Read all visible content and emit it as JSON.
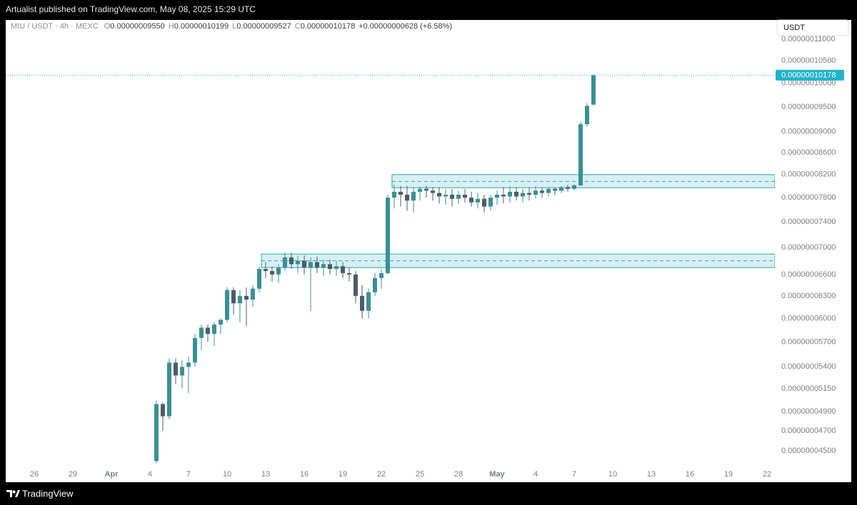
{
  "header": {
    "text": "Artualist published on TradingView.com, May 08, 2025 15:29 UTC"
  },
  "footer": {
    "brand": "TradingView"
  },
  "chart_data": {
    "type": "candlestick",
    "legend": {
      "symbol": "MIU / USDT · 4h · MEXC",
      "ohlc": [
        {
          "key": "O",
          "text": "0.00000009550"
        },
        {
          "key": "H",
          "text": "0.00000010199"
        },
        {
          "key": "L",
          "text": "0.00000009527"
        },
        {
          "key": "C",
          "text": "0.00000010178"
        }
      ],
      "change": "+0.00000000628 (+6.58%)"
    },
    "currency": "USDT",
    "log_scale": true,
    "grid": false,
    "up_color": "#3a8f97",
    "down_color": "#4d5c66",
    "zone_color": "#26a9bf",
    "xlim": [
      -2.22,
      57.61
    ],
    "xticks": [
      {
        "value": 0,
        "label": "26"
      },
      {
        "value": 3,
        "label": "29"
      },
      {
        "value": 6,
        "label": "Apr"
      },
      {
        "value": 9,
        "label": "4"
      },
      {
        "value": 12,
        "label": "7"
      },
      {
        "value": 15,
        "label": "10"
      },
      {
        "value": 18,
        "label": "13"
      },
      {
        "value": 21,
        "label": "16"
      },
      {
        "value": 24,
        "label": "19"
      },
      {
        "value": 27,
        "label": "22"
      },
      {
        "value": 30,
        "label": "25"
      },
      {
        "value": 33,
        "label": "28"
      },
      {
        "value": 36,
        "label": "May"
      },
      {
        "value": 39,
        "label": "4"
      },
      {
        "value": 42,
        "label": "7"
      },
      {
        "value": 45,
        "label": "10"
      },
      {
        "value": 48,
        "label": "13"
      },
      {
        "value": 51,
        "label": "16"
      },
      {
        "value": 54,
        "label": "19"
      },
      {
        "value": 57,
        "label": "22"
      }
    ],
    "ylim": [
      4.342e-08,
      1.144e-07
    ],
    "yticks": [
      {
        "value": 1.1e-07,
        "label": "0.00000011000"
      },
      {
        "value": 1.05e-07,
        "label": "0.00000010500"
      },
      {
        "value": 1e-07,
        "label": "0.00000010000"
      },
      {
        "value": 9.5e-08,
        "label": "0.00000009500"
      },
      {
        "value": 9e-08,
        "label": "0.00000009000"
      },
      {
        "value": 8.6e-08,
        "label": "0.00000008600"
      },
      {
        "value": 8.2e-08,
        "label": "0.00000008200"
      },
      {
        "value": 7.8e-08,
        "label": "0.00000007800"
      },
      {
        "value": 7.4e-08,
        "label": "0.00000007400"
      },
      {
        "value": 7e-08,
        "label": "0.00000007000"
      },
      {
        "value": 6.6e-08,
        "label": "0.00000006600"
      },
      {
        "value": 6.3e-08,
        "label": "0.00000006300"
      },
      {
        "value": 6e-08,
        "label": "0.00000006000"
      },
      {
        "value": 5.7e-08,
        "label": "0.00000005700"
      },
      {
        "value": 5.4e-08,
        "label": "0.00000005400"
      },
      {
        "value": 5.15e-08,
        "label": "0.00000005150"
      },
      {
        "value": 4.9e-08,
        "label": "0.00000004900"
      },
      {
        "value": 4.7e-08,
        "label": "0.00000004700"
      },
      {
        "value": 4.5e-08,
        "label": "0.00000004500"
      }
    ],
    "last_price": {
      "value": 1.0178e-07,
      "label": "0.00000010178"
    },
    "zones": [
      {
        "start": 27.83,
        "top": 8.2e-08,
        "bottom": 7.97e-08,
        "mid": 8.08e-08
      },
      {
        "start": 17.67,
        "top": 6.9e-08,
        "bottom": 6.7e-08,
        "mid": 6.8e-08
      }
    ],
    "x": [
      9.5,
      10,
      10.5,
      11,
      11.5,
      12,
      12.5,
      13,
      13.5,
      14,
      14.5,
      15,
      15.5,
      16,
      16.5,
      17,
      17.5,
      18,
      18.5,
      19,
      19.5,
      20,
      20.5,
      21,
      21.5,
      22,
      22.5,
      23,
      23.5,
      24,
      24.5,
      25,
      25.5,
      26,
      26.5,
      27,
      27.5,
      28,
      28.5,
      29,
      29.5,
      30,
      30.5,
      31,
      31.5,
      32,
      32.5,
      33,
      33.5,
      34,
      34.5,
      35,
      35.5,
      36,
      36.5,
      37,
      37.5,
      38,
      38.5,
      39,
      39.5,
      40,
      40.5,
      41,
      41.5,
      42,
      42.5,
      43,
      43.5
    ],
    "open": [
      4.4e-08,
      4.98e-08,
      4.85e-08,
      5.45e-08,
      5.3e-08,
      5.4e-08,
      5.45e-08,
      5.75e-08,
      5.88e-08,
      5.8e-08,
      5.92e-08,
      5.98e-08,
      6.38e-08,
      6.2e-08,
      6.3e-08,
      6.25e-08,
      6.4e-08,
      6.68e-08,
      6.65e-08,
      6.6e-08,
      6.7e-08,
      6.85e-08,
      6.75e-08,
      6.8e-08,
      6.7e-08,
      6.78e-08,
      6.7e-08,
      6.75e-08,
      6.68e-08,
      6.72e-08,
      6.62e-08,
      6.6e-08,
      6.3e-08,
      6.1e-08,
      6.35e-08,
      6.55e-08,
      6.62e-08,
      7.8e-08,
      7.9e-08,
      7.85e-08,
      7.75e-08,
      7.9e-08,
      7.95e-08,
      7.92e-08,
      7.88e-08,
      7.82e-08,
      7.85e-08,
      7.78e-08,
      7.85e-08,
      7.8e-08,
      7.72e-08,
      7.78e-08,
      7.65e-08,
      7.8e-08,
      7.85e-08,
      7.82e-08,
      7.9e-08,
      7.82e-08,
      7.88e-08,
      7.85e-08,
      7.92e-08,
      7.88e-08,
      7.95e-08,
      7.92e-08,
      7.98e-08,
      7.95e-08,
      8.01e-08,
      9.15e-08,
      9.55e-08
    ],
    "high": [
      5.02e-08,
      5e-08,
      5.5e-08,
      5.5e-08,
      5.48e-08,
      5.52e-08,
      5.8e-08,
      5.92e-08,
      5.92e-08,
      5.95e-08,
      6e-08,
      6.42e-08,
      6.42e-08,
      6.38e-08,
      6.42e-08,
      6.45e-08,
      6.72e-08,
      6.78e-08,
      6.72e-08,
      6.75e-08,
      6.92e-08,
      6.92e-08,
      6.88e-08,
      6.88e-08,
      6.85e-08,
      6.86e-08,
      6.82e-08,
      6.82e-08,
      6.8e-08,
      6.78e-08,
      6.7e-08,
      6.65e-08,
      6.45e-08,
      6.4e-08,
      6.62e-08,
      6.68e-08,
      7.85e-08,
      8.02e-08,
      8e-08,
      8e-08,
      7.98e-08,
      7.99e-08,
      8e-08,
      7.98e-08,
      7.98e-08,
      7.95e-08,
      7.95e-08,
      7.92e-08,
      7.95e-08,
      7.9e-08,
      7.88e-08,
      7.85e-08,
      7.85e-08,
      7.92e-08,
      7.98e-08,
      8e-08,
      7.98e-08,
      7.95e-08,
      7.98e-08,
      8e-08,
      7.98e-08,
      7.98e-08,
      7.98e-08,
      8e-08,
      8.02e-08,
      8.03e-08,
      9.2e-08,
      9.58e-08,
      1.0199e-07
    ],
    "low": [
      4.38e-08,
      4.7e-08,
      4.82e-08,
      5.2e-08,
      5.15e-08,
      5.1e-08,
      5.4e-08,
      5.6e-08,
      5.7e-08,
      5.65e-08,
      5.8e-08,
      5.95e-08,
      6.05e-08,
      5.95e-08,
      5.9e-08,
      6.15e-08,
      6.35e-08,
      6.55e-08,
      6.5e-08,
      6.48e-08,
      6.65e-08,
      6.68e-08,
      6.62e-08,
      6.6e-08,
      6.1e-08,
      6.62e-08,
      6.58e-08,
      6.6e-08,
      6.58e-08,
      6.55e-08,
      6.5e-08,
      6.2e-08,
      6e-08,
      6e-08,
      6.3e-08,
      6.4e-08,
      6.6e-08,
      7.62e-08,
      7.65e-08,
      7.58e-08,
      7.55e-08,
      7.75e-08,
      7.8e-08,
      7.75e-08,
      7.7e-08,
      7.68e-08,
      7.65e-08,
      7.7e-08,
      7.72e-08,
      7.65e-08,
      7.62e-08,
      7.55e-08,
      7.58e-08,
      7.68e-08,
      7.7e-08,
      7.72e-08,
      7.75e-08,
      7.72e-08,
      7.75e-08,
      7.78e-08,
      7.8e-08,
      7.82e-08,
      7.85e-08,
      7.88e-08,
      7.9e-08,
      7.92e-08,
      8e-08,
      9.1e-08,
      9.527e-08
    ],
    "close": [
      4.98e-08,
      4.85e-08,
      5.45e-08,
      5.3e-08,
      5.4e-08,
      5.45e-08,
      5.75e-08,
      5.88e-08,
      5.8e-08,
      5.92e-08,
      5.98e-08,
      6.38e-08,
      6.2e-08,
      6.3e-08,
      6.25e-08,
      6.4e-08,
      6.68e-08,
      6.65e-08,
      6.6e-08,
      6.7e-08,
      6.85e-08,
      6.75e-08,
      6.8e-08,
      6.7e-08,
      6.78e-08,
      6.7e-08,
      6.75e-08,
      6.68e-08,
      6.72e-08,
      6.62e-08,
      6.6e-08,
      6.3e-08,
      6.1e-08,
      6.35e-08,
      6.55e-08,
      6.62e-08,
      7.8e-08,
      7.9e-08,
      7.85e-08,
      7.75e-08,
      7.9e-08,
      7.95e-08,
      7.92e-08,
      7.88e-08,
      7.82e-08,
      7.85e-08,
      7.78e-08,
      7.85e-08,
      7.8e-08,
      7.72e-08,
      7.78e-08,
      7.65e-08,
      7.8e-08,
      7.85e-08,
      7.82e-08,
      7.9e-08,
      7.82e-08,
      7.88e-08,
      7.85e-08,
      7.92e-08,
      7.88e-08,
      7.95e-08,
      7.92e-08,
      7.98e-08,
      7.95e-08,
      8.01e-08,
      9.15e-08,
      9.52e-08,
      1.0178e-07
    ]
  }
}
